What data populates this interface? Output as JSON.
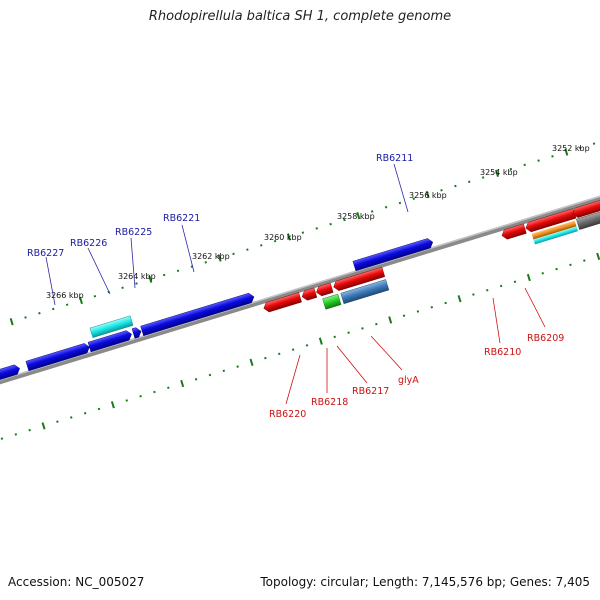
{
  "title": "Rhodopirellula baltica SH 1, complete genome",
  "footer": {
    "accession": "Accession: NC_005027",
    "topology": "Topology: circular; Length: 7,145,576 bp; Genes: 7,405"
  },
  "scale_labels": [
    "3266 kbp",
    "3264 kbp",
    "3262 kbp",
    "3260 kbp",
    "3258 kbp",
    "3256 kbp",
    "3254 kbp",
    "3252 kbp"
  ],
  "gene_labels_forward": [
    "RB6227",
    "RB6226",
    "RB6225",
    "RB6221",
    "RB6211"
  ],
  "gene_labels_reverse": [
    "RB6220",
    "RB6218",
    "RB6217",
    "glyA",
    "RB6210",
    "RB6209"
  ],
  "colors": {
    "forward_gene": "#0a0ae0",
    "reverse_gene": "#e80a0a",
    "highlight_cyan": "#17e6e6",
    "green_gene": "#22cc22",
    "steel_gene": "#3a78b8",
    "orange_gene": "#ee8c1a",
    "gray_gene": "#6a6a6a",
    "magenta_gene": "#dd22cc",
    "backbone": "#8a8a8a",
    "ticks": "#1a7a1a"
  }
}
